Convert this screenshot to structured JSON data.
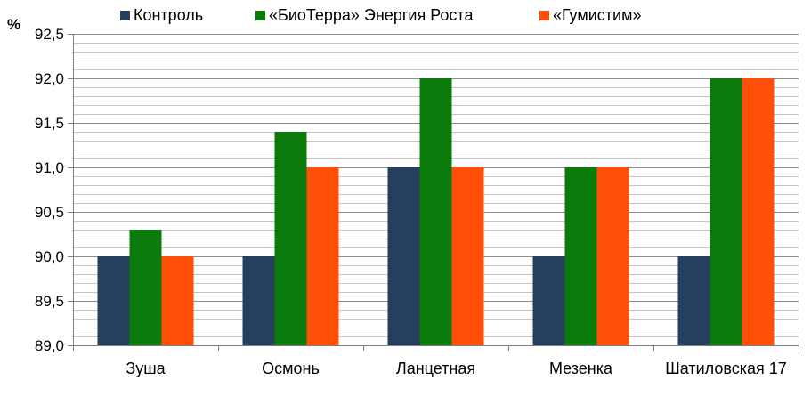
{
  "chart_data": {
    "type": "bar",
    "title": "",
    "xlabel": "",
    "ylabel": "%",
    "ylim": [
      89.0,
      92.5
    ],
    "yticks": [
      "89,0",
      "89,5",
      "90,0",
      "90,5",
      "91,0",
      "91,5",
      "92,0",
      "92,5"
    ],
    "ytick_values": [
      89.0,
      89.5,
      90.0,
      90.5,
      91.0,
      91.5,
      92.0,
      92.5
    ],
    "grid": true,
    "legend_position": "top",
    "categories": [
      "Зуша",
      "Осмонь",
      "Ланцетная",
      "Мезенка",
      "Шатиловская 17"
    ],
    "series": [
      {
        "name": "Контроль",
        "color": "#263f5f",
        "values": [
          90.0,
          90.0,
          91.0,
          90.0,
          90.0
        ]
      },
      {
        "name": "«БиоТерра» Энергия Роста",
        "color": "#0a7a0a",
        "values": [
          90.3,
          91.4,
          92.0,
          91.0,
          92.0
        ]
      },
      {
        "name": "«Гумистим»",
        "color": "#ff4f08",
        "values": [
          90.0,
          91.0,
          91.0,
          91.0,
          92.0
        ]
      }
    ]
  }
}
